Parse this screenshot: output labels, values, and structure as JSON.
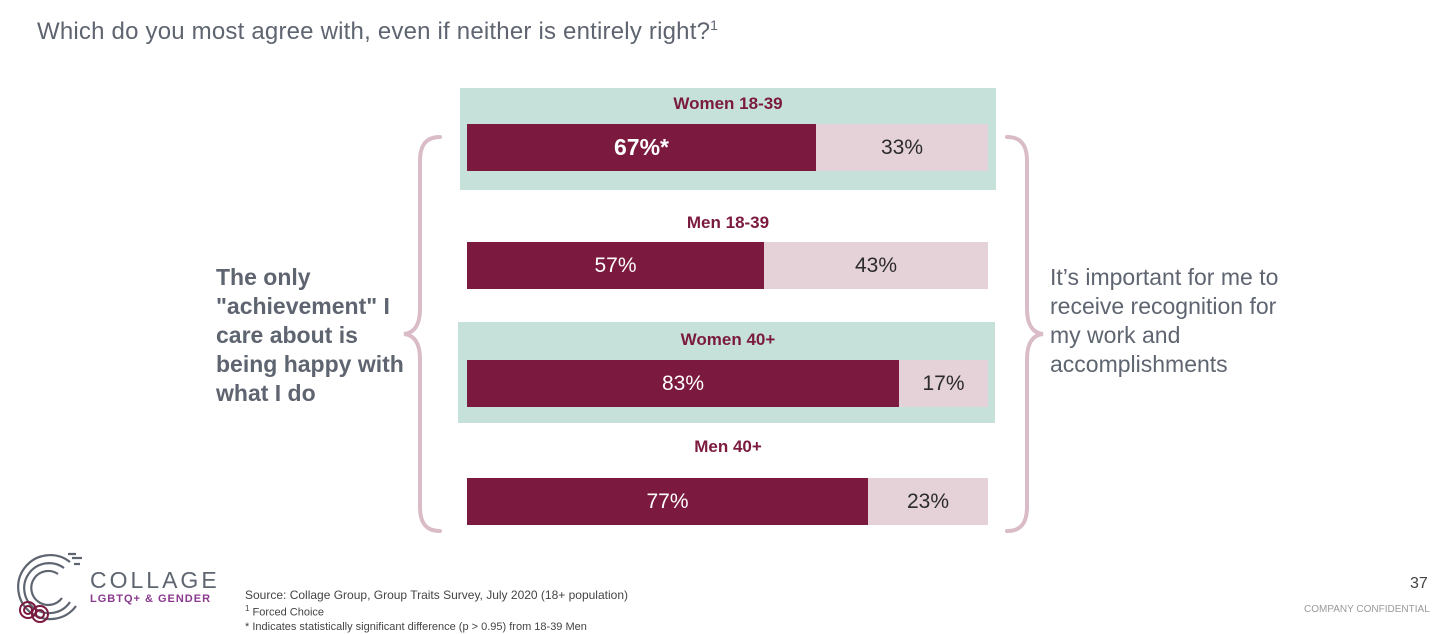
{
  "title": "Which do you most agree with, even if neither is entirely right?",
  "title_sup": "1",
  "left_statement": "The only \"achievement\" I care about is being happy with what I do",
  "right_statement": "It’s important for me to receive recognition for my work and accomplishments",
  "chart_data": {
    "type": "bar",
    "orientation": "horizontal",
    "stacked": true,
    "categories": [
      "Women 18-39",
      "Men 18-39",
      "Women 40+",
      "Men 40+"
    ],
    "series": [
      {
        "values": [
          67,
          57,
          83,
          77
        ],
        "labels": [
          "67%*",
          "57%",
          "83%",
          "77%"
        ],
        "color": "#7b1a3e"
      },
      {
        "values": [
          33,
          43,
          17,
          23
        ],
        "labels": [
          "33%",
          "43%",
          "17%",
          "23%"
        ],
        "color": "#e4d2d8"
      }
    ],
    "highlighted_categories": [
      "Women 18-39",
      "Women 40+"
    ],
    "highlight_color": "#c5e1d9",
    "xlim": [
      0,
      100
    ]
  },
  "logo": {
    "word": "COLLAGE",
    "sub": "LGBTQ+ & GENDER"
  },
  "source": {
    "line1": "Source: Collage Group, Group Traits Survey, July 2020 (18+ population)",
    "line2_sup": "1",
    "line2": " Forced Choice",
    "line3": "* Indicates statistically significant difference (p > 0.95) from 18-39 Men"
  },
  "page_number": "37",
  "confidential": "COMPANY CONFIDENTIAL"
}
